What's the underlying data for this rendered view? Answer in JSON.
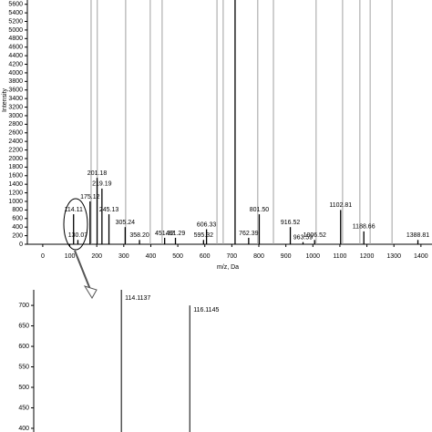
{
  "chart_data": [
    {
      "type": "stem",
      "x_label": "m/z, Da",
      "y_label": "Intensity",
      "xlim": [
        -57,
        1441
      ],
      "ylim": [
        0,
        5700
      ],
      "xticks": [
        0,
        100,
        200,
        300,
        400,
        500,
        600,
        700,
        800,
        900,
        1000,
        1100,
        1200,
        1300,
        1400
      ],
      "yticks": [
        0,
        200,
        400,
        600,
        800,
        1000,
        1200,
        1400,
        1600,
        1800,
        2000,
        2200,
        2400,
        2600,
        2800,
        3000,
        3200,
        3400,
        3600,
        3800,
        4000,
        4200,
        4400,
        4600,
        4800,
        5000,
        5200,
        5400,
        5600
      ],
      "color": "#000000",
      "reference_lines": [
        179,
        202,
        307,
        398,
        442,
        645,
        668,
        796,
        854,
        1012,
        1110,
        1174,
        1212,
        1293
      ],
      "reference_color": "#a0a0a0",
      "x": [
        114.11,
        130.07,
        175.12,
        201.18,
        219.19,
        245.13,
        305.24,
        358.2,
        451.32,
        491.29,
        595.32,
        606.33,
        712,
        762.39,
        801.5,
        916.52,
        963.59,
        1006.52,
        1102.81,
        1188.66,
        1388.81
      ],
      "labels": [
        "114.11",
        "130.07",
        "175.12",
        "201.18",
        "219.19",
        "245.13",
        "305.24",
        "358.20",
        "451.32",
        "491.29",
        "595.32",
        "606.33",
        null,
        "762.39",
        "801.50",
        "916.52",
        "963.59",
        "1006.52",
        "1102.81",
        "1188.66",
        "1388.81"
      ],
      "values": [
        700,
        100,
        1000,
        1550,
        1300,
        700,
        400,
        100,
        150,
        150,
        100,
        350,
        6000,
        150,
        700,
        400,
        50,
        100,
        800,
        300,
        100
      ]
    },
    {
      "type": "stem",
      "xlim": [
        111.55,
        123.2
      ],
      "ylim": [
        391,
        738
      ],
      "yticks": [
        400,
        450,
        500,
        550,
        600,
        650,
        700
      ],
      "color": "#000000",
      "x": [
        114.1137,
        116.1145
      ],
      "labels": [
        "114.1137",
        "116.1145"
      ],
      "values": [
        740,
        700
      ]
    }
  ]
}
